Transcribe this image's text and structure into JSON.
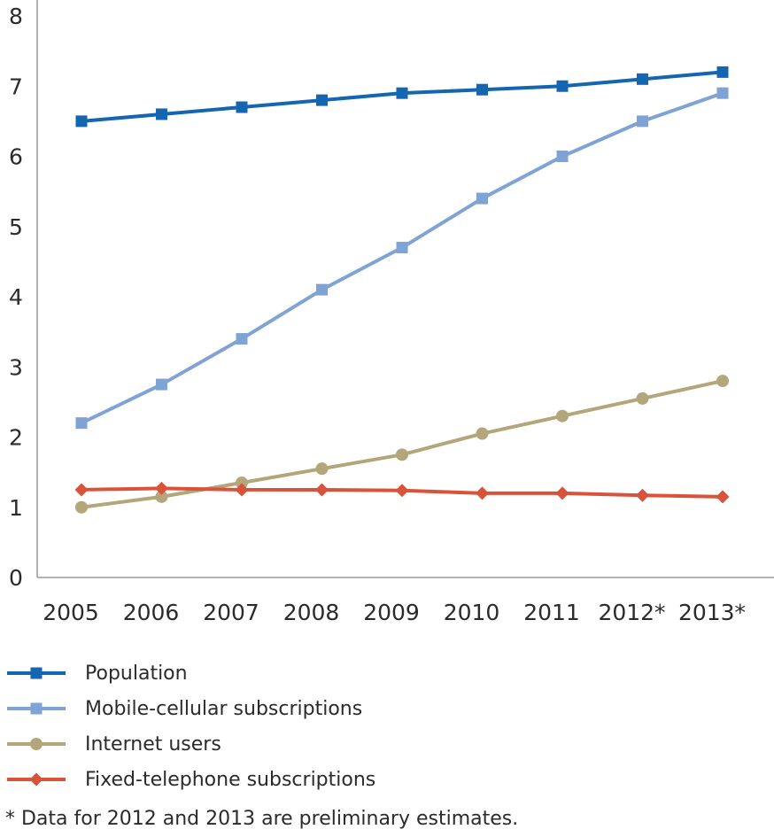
{
  "chart_data": {
    "type": "line",
    "categories": [
      "2005",
      "2006",
      "2007",
      "2008",
      "2009",
      "2010",
      "2011",
      "2012*",
      "2013*"
    ],
    "ylim": [
      0,
      8
    ],
    "yticks": [
      "0",
      "1",
      "2",
      "3",
      "4",
      "5",
      "6",
      "7",
      "8"
    ],
    "grid": false,
    "legend_position": "bottom-left",
    "series": [
      {
        "name": "Population",
        "color": "#1466b0",
        "marker": "square",
        "values": [
          6.5,
          6.6,
          6.7,
          6.8,
          6.9,
          6.95,
          7.0,
          7.1,
          7.2
        ]
      },
      {
        "name": "Mobile-cellular subscriptions",
        "color": "#7fa3d4",
        "marker": "square",
        "values": [
          2.2,
          2.75,
          3.4,
          4.1,
          4.7,
          5.4,
          6.0,
          6.5,
          6.9
        ]
      },
      {
        "name": "Internet users",
        "color": "#b3a67a",
        "marker": "circle",
        "values": [
          1.0,
          1.15,
          1.35,
          1.55,
          1.75,
          2.05,
          2.3,
          2.55,
          2.8
        ]
      },
      {
        "name": "Fixed-telephone subscriptions",
        "color": "#d9533a",
        "marker": "diamond",
        "values": [
          1.25,
          1.27,
          1.25,
          1.25,
          1.24,
          1.2,
          1.2,
          1.17,
          1.15
        ]
      }
    ]
  },
  "footnote": "* Data for 2012 and 2013 are preliminary estimates."
}
